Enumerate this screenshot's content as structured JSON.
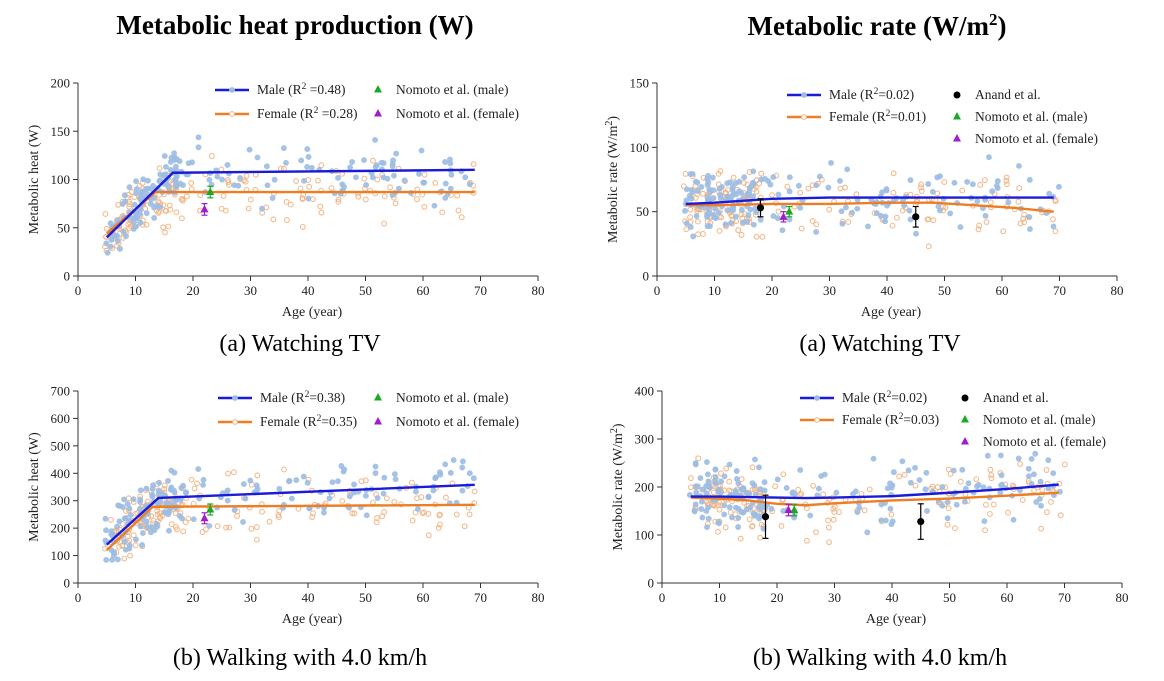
{
  "titles": {
    "left": "Metabolic heat production (W)",
    "right_main": "Metabolic rate (W/m",
    "right_sup": "2",
    "right_end": ")"
  },
  "captions": {
    "a_left": "(a) Watching TV",
    "a_right": "(a) Watching TV",
    "b_left": "(b) Walking with 4.0 km/h",
    "b_right": "(b) Walking with 4.0 km/h"
  },
  "colors": {
    "male_line": "#1a1adb",
    "female_line": "#ee7d24",
    "male_dot": "#9dbde3",
    "female_dot": "#f2b482",
    "nomoto_male": "#1aaa22",
    "nomoto_female": "#a21ccc",
    "anand": "#000000"
  },
  "chart_data": [
    {
      "type": "scatter",
      "panel": "a-left",
      "xlabel": "Age (year)",
      "ylabel": "Metabolic heat (W)",
      "xlim": [
        0,
        80
      ],
      "ylim": [
        0,
        200
      ],
      "xticks": [
        0,
        10,
        20,
        30,
        40,
        50,
        60,
        70,
        80
      ],
      "yticks": [
        0,
        50,
        100,
        150,
        200
      ],
      "legend": [
        {
          "key": "male",
          "text": "Male  (R",
          "sup": "2",
          "after": " =0.48)"
        },
        {
          "key": "female",
          "text": "Female  (R",
          "sup": "2",
          "after": " =0.28)"
        },
        {
          "key": "nomoto_male",
          "text": "Nomoto et al. (male)"
        },
        {
          "key": "nomoto_female",
          "text": "Nomoto et al. (female)"
        }
      ],
      "male_fit": {
        "x": [
          5,
          16.5,
          69
        ],
        "y": [
          40,
          107,
          110
        ]
      },
      "female_fit": {
        "x": [
          5,
          13.5,
          69
        ],
        "y": [
          44,
          87,
          87
        ]
      },
      "male_scatter": {
        "range": [
          5,
          70
        ],
        "model": [
          [
            5,
            40
          ],
          [
            16.5,
            107
          ],
          [
            69,
            110
          ]
        ],
        "spread": 15
      },
      "female_scatter": {
        "range": [
          5,
          70
        ],
        "model": [
          [
            5,
            44
          ],
          [
            13.5,
            87
          ],
          [
            69,
            87
          ]
        ],
        "spread": 15
      },
      "refs": [
        {
          "key": "nomoto_male",
          "x": 23,
          "y": 87,
          "err": 6
        },
        {
          "key": "nomoto_female",
          "x": 22,
          "y": 69,
          "err": 6
        }
      ]
    },
    {
      "type": "scatter",
      "panel": "a-right",
      "xlabel": "Age (year)",
      "ylabel": "Metabolic rate (W/m",
      "ylabel_sup": "2",
      "ylabel_end": ")",
      "xlim": [
        0,
        80
      ],
      "ylim": [
        0,
        150
      ],
      "xticks": [
        0,
        10,
        20,
        30,
        40,
        50,
        60,
        70,
        80
      ],
      "yticks": [
        0,
        50,
        100,
        150
      ],
      "legend": [
        {
          "key": "male",
          "text": "Male (R",
          "sup": "2",
          "after": "=0.02)"
        },
        {
          "key": "female",
          "text": "Female (R",
          "sup": "2",
          "after": "=0.01)"
        },
        {
          "key": "anand",
          "text": "Anand et al."
        },
        {
          "key": "nomoto_male",
          "text": "Nomoto et al. (male)"
        },
        {
          "key": "nomoto_female",
          "text": "Nomoto et al. (female)"
        }
      ],
      "male_fit": {
        "x": [
          5,
          10,
          20,
          30,
          40,
          50,
          60,
          69
        ],
        "y": [
          56,
          57,
          60,
          61,
          61,
          61,
          61,
          61
        ]
      },
      "female_fit": {
        "x": [
          5,
          10,
          20,
          30,
          40,
          48,
          55,
          62,
          69
        ],
        "y": [
          55,
          55,
          56,
          56,
          57,
          57,
          55,
          53,
          50
        ]
      },
      "male_scatter": {
        "range": [
          5,
          70
        ],
        "model": [
          [
            5,
            56
          ],
          [
            69,
            61
          ]
        ],
        "spread": 12
      },
      "female_scatter": {
        "range": [
          5,
          70
        ],
        "model": [
          [
            5,
            55
          ],
          [
            48,
            57
          ],
          [
            69,
            50
          ]
        ],
        "spread": 12
      },
      "refs": [
        {
          "key": "anand",
          "x": 18,
          "y": 53,
          "err": 7
        },
        {
          "key": "anand",
          "x": 45,
          "y": 46,
          "err": 8
        },
        {
          "key": "nomoto_male",
          "x": 23,
          "y": 50,
          "err": 4
        },
        {
          "key": "nomoto_female",
          "x": 22,
          "y": 46,
          "err": 4
        }
      ]
    },
    {
      "type": "scatter",
      "panel": "b-left",
      "xlabel": "Age (year)",
      "ylabel": "Metabolic heat (W)",
      "xlim": [
        0,
        80
      ],
      "ylim": [
        0,
        700
      ],
      "xticks": [
        0,
        10,
        20,
        30,
        40,
        50,
        60,
        70,
        80
      ],
      "yticks": [
        0,
        100,
        200,
        300,
        400,
        500,
        600,
        700
      ],
      "legend": [
        {
          "key": "male",
          "text": "Male  (R",
          "sup": "2",
          "after": "=0.38)"
        },
        {
          "key": "female",
          "text": "Female  (R",
          "sup": "2",
          "after": "=0.35)"
        },
        {
          "key": "nomoto_male",
          "text": "Nomoto et al. (male)"
        },
        {
          "key": "nomoto_female",
          "text": "Nomoto et al. (female)"
        }
      ],
      "male_fit": {
        "x": [
          5,
          14,
          69
        ],
        "y": [
          140,
          310,
          358
        ]
      },
      "female_fit": {
        "x": [
          5,
          13,
          69
        ],
        "y": [
          120,
          278,
          285
        ]
      },
      "male_scatter": {
        "range": [
          5,
          70
        ],
        "model": [
          [
            5,
            140
          ],
          [
            14,
            310
          ],
          [
            69,
            358
          ]
        ],
        "spread": 55
      },
      "female_scatter": {
        "range": [
          5,
          70
        ],
        "model": [
          [
            5,
            120
          ],
          [
            13,
            278
          ],
          [
            69,
            285
          ]
        ],
        "spread": 50
      },
      "refs": [
        {
          "key": "nomoto_male",
          "x": 23,
          "y": 268,
          "err": 20
        },
        {
          "key": "nomoto_female",
          "x": 22,
          "y": 236,
          "err": 20
        }
      ]
    },
    {
      "type": "scatter",
      "panel": "b-right",
      "xlabel": "Age (year)",
      "ylabel": "Metabolic rate (W/m",
      "ylabel_sup": "2",
      "ylabel_end": ")",
      "xlim": [
        0,
        80
      ],
      "ylim": [
        0,
        400
      ],
      "xticks": [
        0,
        10,
        20,
        30,
        40,
        50,
        60,
        70,
        80
      ],
      "yticks": [
        0,
        100,
        200,
        300,
        400
      ],
      "legend": [
        {
          "key": "male",
          "text": "Male (R",
          "sup": "2",
          "after": "=0.02)"
        },
        {
          "key": "female",
          "text": "Female (R",
          "sup": "2",
          "after": "=0.03)"
        },
        {
          "key": "anand",
          "text": "Anand et al."
        },
        {
          "key": "nomoto_male",
          "text": "Nomoto et al. (male)"
        },
        {
          "key": "nomoto_female",
          "text": "Nomoto et al. (female)"
        }
      ],
      "male_fit": {
        "x": [
          5,
          10,
          20,
          25,
          30,
          40,
          50,
          60,
          69
        ],
        "y": [
          180,
          180,
          178,
          177,
          178,
          181,
          188,
          196,
          205
        ]
      },
      "female_fit": {
        "x": [
          5,
          10,
          15,
          20,
          25,
          30,
          40,
          50,
          60,
          69
        ],
        "y": [
          178,
          176,
          172,
          165,
          162,
          166,
          172,
          176,
          182,
          188
        ]
      },
      "male_scatter": {
        "range": [
          5,
          70
        ],
        "model": [
          [
            5,
            180
          ],
          [
            25,
            177
          ],
          [
            69,
            205
          ]
        ],
        "spread": 35
      },
      "female_scatter": {
        "range": [
          5,
          70
        ],
        "model": [
          [
            5,
            178
          ],
          [
            25,
            162
          ],
          [
            69,
            188
          ]
        ],
        "spread": 32
      },
      "refs": [
        {
          "key": "anand",
          "x": 18,
          "y": 138,
          "err": 45
        },
        {
          "key": "anand",
          "x": 45,
          "y": 128,
          "err": 37
        },
        {
          "key": "nomoto_male",
          "x": 23,
          "y": 152,
          "err": 12
        },
        {
          "key": "nomoto_female",
          "x": 22,
          "y": 152,
          "err": 12
        }
      ]
    }
  ]
}
